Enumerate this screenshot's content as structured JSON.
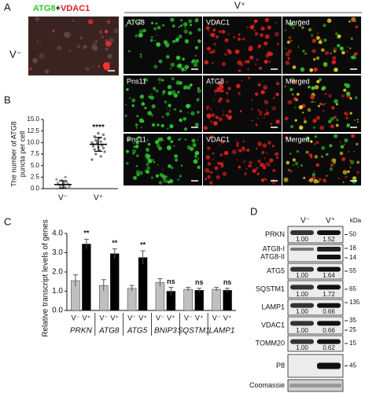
{
  "panel_a": {
    "letter": "A",
    "stain": {
      "first": "ATG8",
      "plus": "+",
      "second": "VDAC1",
      "first_color": "#2ec82e",
      "second_color": "#e02020"
    },
    "group_label": "V⁺",
    "control_label": "V⁻",
    "images": [
      [
        {
          "label": "ATG8",
          "channel": "green"
        },
        {
          "label": "VDAC1",
          "channel": "red"
        },
        {
          "label": "Merged",
          "channel": "merged"
        }
      ],
      [
        {
          "label": "Pns11",
          "channel": "green"
        },
        {
          "label": "ATG8",
          "channel": "red"
        },
        {
          "label": "Merged",
          "channel": "merged"
        }
      ],
      [
        {
          "label": "Pns11",
          "channel": "green"
        },
        {
          "label": "VDAC1",
          "channel": "red"
        },
        {
          "label": "Merged",
          "channel": "merged"
        }
      ]
    ]
  },
  "chart_data": [
    {
      "panel": "B",
      "type": "strip",
      "ylabel": [
        "The number of ATG8",
        "puncta per cell"
      ],
      "categories": [
        "V⁻",
        "V⁺"
      ],
      "points": [
        [
          0.0,
          0.2,
          0.3,
          0.5,
          0.5,
          0.8,
          1.0,
          1.0,
          1.2,
          1.5,
          1.8,
          2.0,
          2.5,
          0.7,
          0.4,
          1.3
        ],
        [
          6.3,
          7.0,
          7.5,
          8.0,
          8.3,
          8.5,
          8.8,
          9.0,
          9.2,
          9.5,
          9.8,
          10.0,
          10.2,
          10.5,
          10.8,
          11.0,
          11.3,
          11.7,
          12.0,
          9.6,
          9.4,
          10.3
        ]
      ],
      "mean": [
        0.9,
        9.6
      ],
      "sd": [
        0.8,
        1.5
      ],
      "colors": [
        "#9a9a9a",
        "#7a7a7a"
      ],
      "annotation": "****",
      "ylim": [
        0,
        15
      ],
      "yticks": [
        {
          "value": 0,
          "label": "0.0"
        },
        {
          "value": 2.5,
          "label": "2.5"
        },
        {
          "value": 5,
          "label": "5.0"
        },
        {
          "value": 7.5,
          "label": "7.5"
        },
        {
          "value": 10,
          "label": "10.0"
        },
        {
          "value": 12.5,
          "label": "12.5"
        },
        {
          "value": 15,
          "label": "15.0"
        }
      ]
    },
    {
      "panel": "C",
      "type": "bar",
      "ylabel": "Relative transcript levels of genes",
      "categories": [
        "PRKN",
        "ATG8",
        "ATG5",
        "BNIP3",
        "SQSTM1",
        "LAMP1"
      ],
      "series": [
        {
          "name": "V⁻",
          "color": "#c0c0c0",
          "values": [
            1.55,
            1.3,
            1.15,
            1.45,
            1.1,
            1.1
          ],
          "errors": [
            0.3,
            0.3,
            0.15,
            0.2,
            0.1,
            0.1
          ]
        },
        {
          "name": "V⁺",
          "color": "#000000",
          "values": [
            3.45,
            2.95,
            2.75,
            1.0,
            1.05,
            1.05
          ],
          "errors": [
            0.25,
            0.25,
            0.35,
            0.2,
            0.1,
            0.1
          ]
        }
      ],
      "annotations": [
        "**",
        "**",
        "**",
        "ns",
        "ns",
        "ns"
      ],
      "ylim": [
        0,
        4
      ],
      "yticks": [
        {
          "value": 0,
          "label": "0.0"
        },
        {
          "value": 1,
          "label": "1.0"
        },
        {
          "value": 2,
          "label": "2.0"
        },
        {
          "value": 3,
          "label": "3.0"
        },
        {
          "value": 4,
          "label": "4.0"
        }
      ]
    }
  ],
  "panel_d": {
    "letter": "D",
    "columns": [
      "V⁻",
      "V⁺"
    ],
    "unit": "kDa",
    "rows": [
      {
        "labels": [
          "PRKN"
        ],
        "quant": [
          "1.00",
          "1.52"
        ],
        "markers": [
          50
        ]
      },
      {
        "labels": [
          "ATG8-I",
          "ATG8-II"
        ],
        "markers": [
          16,
          14
        ]
      },
      {
        "labels": [
          "ATG5"
        ],
        "quant": [
          "1.00",
          "1.64"
        ],
        "markers": [
          55
        ]
      },
      {
        "labels": [
          "SQSTM1"
        ],
        "quant": [
          "1.00",
          "1.72"
        ],
        "markers": [
          65
        ]
      },
      {
        "labels": [
          "LAMP1"
        ],
        "quant": [
          "1.00",
          "0.66"
        ],
        "markers": [
          135
        ]
      },
      {
        "labels": [
          "VDAC1"
        ],
        "quant": [
          "1.00",
          "0.66"
        ],
        "markers": [
          35,
          25
        ]
      },
      {
        "labels": [
          "TOMM20"
        ],
        "quant": [
          "1.00",
          "0.62"
        ],
        "markers": [
          15
        ]
      },
      {
        "labels": [
          "P8"
        ],
        "markers": [
          45
        ]
      },
      {
        "labels": [
          "Coomassie"
        ]
      }
    ]
  }
}
